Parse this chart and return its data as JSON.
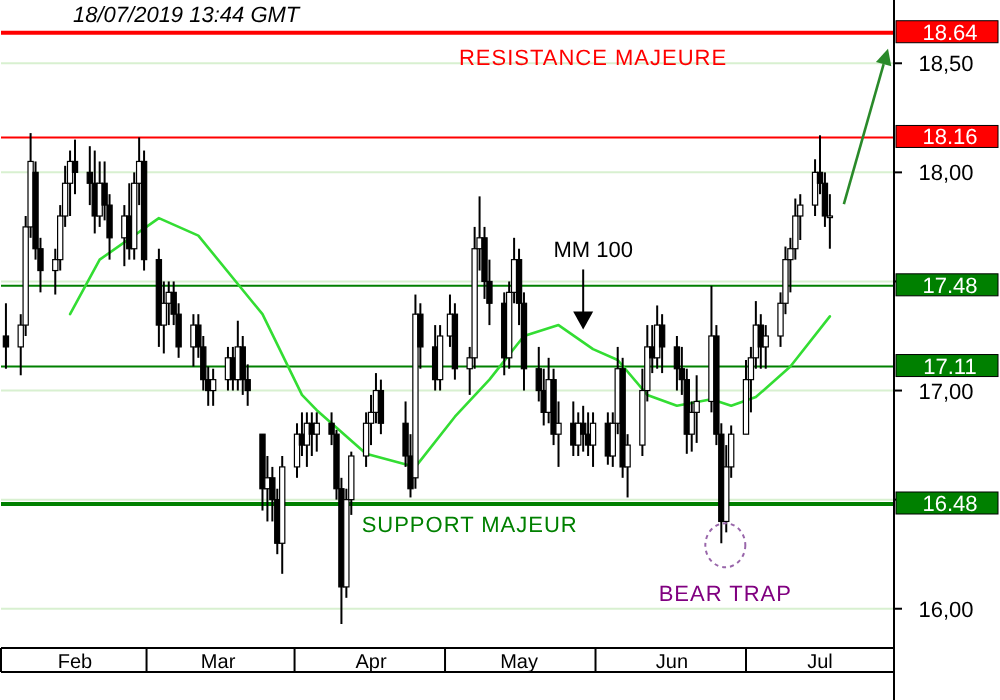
{
  "chart_data": {
    "type": "candlestick",
    "x": [
      "2019-02-01",
      "2019-02-04",
      "2019-02-05",
      "2019-02-06",
      "2019-02-07",
      "2019-02-08",
      "2019-02-11",
      "2019-02-12",
      "2019-02-13",
      "2019-02-14",
      "2019-02-15",
      "2019-02-18",
      "2019-02-19",
      "2019-02-20",
      "2019-02-21",
      "2019-02-22",
      "2019-02-25",
      "2019-02-26",
      "2019-02-27",
      "2019-02-28",
      "2019-03-01",
      "2019-03-04",
      "2019-03-05",
      "2019-03-06",
      "2019-03-07",
      "2019-03-08",
      "2019-03-11",
      "2019-03-12",
      "2019-03-13",
      "2019-03-14",
      "2019-03-15",
      "2019-03-18",
      "2019-03-19",
      "2019-03-20",
      "2019-03-21",
      "2019-03-22",
      "2019-03-25",
      "2019-03-26",
      "2019-03-27",
      "2019-03-28",
      "2019-03-29",
      "2019-04-01",
      "2019-04-02",
      "2019-04-03",
      "2019-04-04",
      "2019-04-05",
      "2019-04-08",
      "2019-04-09",
      "2019-04-10",
      "2019-04-11",
      "2019-04-12",
      "2019-04-15",
      "2019-04-16",
      "2019-04-17",
      "2019-04-18",
      "2019-04-23",
      "2019-04-24",
      "2019-04-25",
      "2019-04-26",
      "2019-04-29",
      "2019-04-30",
      "2019-05-02",
      "2019-05-03",
      "2019-05-06",
      "2019-05-07",
      "2019-05-08",
      "2019-05-09",
      "2019-05-10",
      "2019-05-13",
      "2019-05-14",
      "2019-05-15",
      "2019-05-16",
      "2019-05-17",
      "2019-05-20",
      "2019-05-21",
      "2019-05-22",
      "2019-05-23",
      "2019-05-24",
      "2019-05-27",
      "2019-05-28",
      "2019-05-29",
      "2019-05-30",
      "2019-05-31",
      "2019-06-03",
      "2019-06-04",
      "2019-06-05",
      "2019-06-06",
      "2019-06-07",
      "2019-06-10",
      "2019-06-11",
      "2019-06-12",
      "2019-06-13",
      "2019-06-14",
      "2019-06-17",
      "2019-06-18",
      "2019-06-19",
      "2019-06-20",
      "2019-06-21",
      "2019-06-24",
      "2019-06-25",
      "2019-06-26",
      "2019-06-27",
      "2019-06-28",
      "2019-07-01",
      "2019-07-02",
      "2019-07-03",
      "2019-07-04",
      "2019-07-05",
      "2019-07-08",
      "2019-07-09",
      "2019-07-10",
      "2019-07-11",
      "2019-07-12",
      "2019-07-15",
      "2019-07-16",
      "2019-07-17",
      "2019-07-18"
    ],
    "ohlc": [
      [
        17.25,
        17.4,
        17.1,
        17.2
      ],
      [
        17.2,
        17.35,
        17.07,
        17.3
      ],
      [
        17.3,
        17.8,
        17.25,
        17.75
      ],
      [
        17.75,
        18.18,
        17.7,
        18.05
      ],
      [
        18.0,
        18.05,
        17.6,
        17.65
      ],
      [
        17.65,
        17.7,
        17.45,
        17.55
      ],
      [
        17.55,
        17.65,
        17.44,
        17.6
      ],
      [
        17.6,
        17.85,
        17.55,
        17.8
      ],
      [
        17.8,
        18.03,
        17.75,
        17.95
      ],
      [
        17.95,
        18.1,
        17.8,
        18.05
      ],
      [
        18.05,
        18.15,
        17.9,
        18.0
      ],
      [
        18.0,
        18.12,
        17.85,
        17.95
      ],
      [
        17.95,
        18.1,
        17.72,
        17.8
      ],
      [
        17.8,
        18.05,
        17.75,
        17.95
      ],
      [
        17.95,
        18.05,
        17.78,
        17.85
      ],
      [
        17.85,
        17.9,
        17.6,
        17.7
      ],
      [
        17.7,
        17.85,
        17.57,
        17.8
      ],
      [
        17.8,
        17.95,
        17.6,
        17.65
      ],
      [
        17.65,
        18.0,
        17.6,
        17.95
      ],
      [
        17.95,
        18.16,
        17.85,
        18.05
      ],
      [
        18.05,
        18.1,
        17.55,
        17.6
      ],
      [
        17.6,
        17.65,
        17.2,
        17.3
      ],
      [
        17.3,
        17.5,
        17.17,
        17.4
      ],
      [
        17.4,
        17.5,
        17.3,
        17.45
      ],
      [
        17.45,
        17.5,
        17.3,
        17.35
      ],
      [
        17.35,
        17.4,
        17.15,
        17.2
      ],
      [
        17.2,
        17.35,
        17.11,
        17.3
      ],
      [
        17.3,
        17.35,
        17.15,
        17.2
      ],
      [
        17.2,
        17.25,
        17.0,
        17.05
      ],
      [
        17.05,
        17.11,
        16.93,
        17.0
      ],
      [
        17.0,
        17.1,
        16.93,
        17.05
      ],
      [
        17.05,
        17.2,
        17.0,
        17.15
      ],
      [
        17.15,
        17.2,
        17.0,
        17.05
      ],
      [
        17.05,
        17.32,
        17.0,
        17.2
      ],
      [
        17.2,
        17.25,
        16.98,
        17.05
      ],
      [
        17.05,
        17.12,
        16.93,
        17.0
      ],
      [
        16.8,
        16.8,
        16.45,
        16.55
      ],
      [
        16.55,
        16.7,
        16.4,
        16.6
      ],
      [
        16.6,
        16.65,
        16.4,
        16.5
      ],
      [
        16.5,
        16.55,
        16.25,
        16.3
      ],
      [
        16.3,
        16.7,
        16.16,
        16.65
      ],
      [
        16.65,
        16.85,
        16.6,
        16.8
      ],
      [
        16.8,
        16.9,
        16.7,
        16.75
      ],
      [
        16.75,
        16.9,
        16.65,
        16.85
      ],
      [
        16.85,
        16.9,
        16.7,
        16.8
      ],
      [
        16.8,
        16.9,
        16.72,
        16.85
      ],
      [
        16.85,
        16.9,
        16.75,
        16.8
      ],
      [
        16.8,
        16.82,
        16.5,
        16.55
      ],
      [
        16.55,
        16.6,
        15.93,
        16.1
      ],
      [
        16.1,
        16.55,
        16.05,
        16.5
      ],
      [
        16.5,
        16.72,
        16.43,
        16.7
      ],
      [
        16.7,
        16.9,
        16.65,
        16.85
      ],
      [
        16.85,
        16.98,
        16.75,
        16.9
      ],
      [
        16.9,
        17.08,
        16.85,
        17.0
      ],
      [
        17.0,
        17.05,
        16.8,
        16.85
      ],
      [
        16.85,
        16.95,
        16.65,
        16.7
      ],
      [
        16.7,
        16.8,
        16.51,
        16.55
      ],
      [
        16.6,
        17.44,
        16.55,
        17.35
      ],
      [
        17.35,
        17.4,
        17.1,
        17.2
      ],
      [
        17.2,
        17.3,
        17.0,
        17.05
      ],
      [
        17.05,
        17.3,
        17.0,
        17.25
      ],
      [
        17.25,
        17.44,
        17.2,
        17.35
      ],
      [
        17.35,
        17.4,
        17.05,
        17.1
      ],
      [
        17.1,
        17.2,
        16.98,
        17.15
      ],
      [
        17.15,
        17.75,
        17.1,
        17.65
      ],
      [
        17.65,
        17.89,
        17.55,
        17.7
      ],
      [
        17.7,
        17.75,
        17.42,
        17.5
      ],
      [
        17.5,
        17.6,
        17.3,
        17.4
      ],
      [
        17.4,
        17.45,
        17.07,
        17.15
      ],
      [
        17.15,
        17.5,
        17.1,
        17.45
      ],
      [
        17.45,
        17.7,
        17.4,
        17.6
      ],
      [
        17.6,
        17.65,
        17.3,
        17.4
      ],
      [
        17.4,
        17.45,
        17.0,
        17.1
      ],
      [
        17.1,
        17.2,
        16.95,
        17.0
      ],
      [
        17.0,
        17.1,
        16.84,
        16.9
      ],
      [
        16.9,
        17.15,
        16.85,
        17.05
      ],
      [
        17.05,
        17.1,
        16.75,
        16.8
      ],
      [
        16.8,
        16.95,
        16.65,
        16.85
      ],
      [
        16.85,
        16.95,
        16.7,
        16.75
      ],
      [
        16.75,
        16.9,
        16.7,
        16.85
      ],
      [
        16.85,
        16.93,
        16.72,
        16.8
      ],
      [
        16.8,
        16.9,
        16.7,
        16.75
      ],
      [
        16.75,
        16.9,
        16.65,
        16.85
      ],
      [
        16.85,
        16.9,
        16.66,
        16.7
      ],
      [
        16.7,
        16.9,
        16.65,
        16.85
      ],
      [
        16.85,
        17.2,
        16.8,
        17.1
      ],
      [
        17.1,
        17.15,
        16.6,
        16.65
      ],
      [
        16.65,
        16.8,
        16.51,
        16.75
      ],
      [
        16.75,
        17.1,
        16.7,
        17.0
      ],
      [
        17.0,
        17.3,
        16.95,
        17.2
      ],
      [
        17.2,
        17.3,
        17.08,
        17.15
      ],
      [
        17.15,
        17.39,
        17.1,
        17.3
      ],
      [
        17.3,
        17.35,
        17.08,
        17.2
      ],
      [
        17.2,
        17.25,
        17.0,
        17.1
      ],
      [
        17.1,
        17.2,
        16.98,
        17.05
      ],
      [
        17.05,
        17.1,
        16.71,
        16.8
      ],
      [
        16.8,
        16.95,
        16.72,
        16.9
      ],
      [
        16.9,
        17.07,
        16.76,
        16.95
      ],
      [
        16.95,
        17.48,
        16.9,
        17.25
      ],
      [
        17.25,
        17.3,
        16.75,
        16.8
      ],
      [
        16.8,
        16.85,
        16.3,
        16.4
      ],
      [
        16.4,
        16.75,
        16.35,
        16.65
      ],
      [
        16.65,
        16.84,
        16.6,
        16.8
      ],
      [
        16.8,
        17.14,
        16.8,
        17.05
      ],
      [
        17.05,
        17.2,
        16.9,
        17.15
      ],
      [
        17.15,
        17.41,
        17.1,
        17.3
      ],
      [
        17.3,
        17.35,
        17.1,
        17.2
      ],
      [
        17.2,
        17.3,
        17.1,
        17.25
      ],
      [
        17.25,
        17.45,
        17.2,
        17.4
      ],
      [
        17.4,
        17.66,
        17.35,
        17.6
      ],
      [
        17.6,
        17.7,
        17.45,
        17.65
      ],
      [
        17.65,
        17.88,
        17.6,
        17.8
      ],
      [
        17.8,
        17.9,
        17.69,
        17.85
      ],
      [
        17.85,
        18.06,
        17.8,
        18.0
      ],
      [
        18.0,
        18.17,
        17.9,
        17.95
      ],
      [
        17.95,
        18.0,
        17.75,
        17.8
      ],
      [
        17.8,
        17.9,
        17.65,
        17.8
      ]
    ],
    "color": "#000000",
    "series": [
      {
        "type": "line",
        "color": "#33dd33",
        "x": [
          "2019-02-14",
          "2019-02-20",
          "2019-03-04",
          "2019-03-12",
          "2019-03-25",
          "2019-04-02",
          "2019-04-05",
          "2019-04-15",
          "2019-04-25",
          "2019-05-03",
          "2019-05-10",
          "2019-05-17",
          "2019-05-24",
          "2019-05-31",
          "2019-06-05",
          "2019-06-11",
          "2019-06-17",
          "2019-06-24",
          "2019-06-28",
          "2019-07-03",
          "2019-07-10",
          "2019-07-18"
        ],
        "values": [
          17.35,
          17.6,
          17.79,
          17.71,
          17.35,
          16.98,
          16.91,
          16.71,
          16.65,
          16.88,
          17.05,
          17.25,
          17.3,
          17.19,
          17.14,
          16.98,
          16.93,
          16.96,
          16.93,
          16.97,
          17.11,
          17.34
        ]
      }
    ],
    "xlim": [
      "2019-01-31",
      "2019-07-31"
    ],
    "xticks": [
      {
        "value": "2019-02-15",
        "label": "Feb"
      },
      {
        "value": "2019-03-16",
        "label": "Mar"
      },
      {
        "value": "2019-04-16",
        "label": "Apr"
      },
      {
        "value": "2019-05-16",
        "label": "May"
      },
      {
        "value": "2019-06-16",
        "label": "Jun"
      },
      {
        "value": "2019-07-16",
        "label": "Jul"
      }
    ],
    "ylim": [
      15.82,
      18.79
    ],
    "yticks": [
      {
        "value": 16,
        "label": "16,00"
      },
      {
        "value": 16.5,
        "label": null
      },
      {
        "value": 17,
        "label": "17,00"
      },
      {
        "value": 17.5,
        "label": null
      },
      {
        "value": 18,
        "label": "18,00"
      },
      {
        "value": 18.5,
        "label": "18,50"
      }
    ],
    "grid": "y",
    "ref_lines": [
      {
        "axis": "y",
        "value": 18.64,
        "label": "18.64",
        "color": "#ff0000"
      },
      {
        "axis": "y",
        "value": 18.16,
        "label": "18.16",
        "color": "#ff0000"
      },
      {
        "axis": "y",
        "value": 17.48,
        "label": "17.48",
        "color": "#008000"
      },
      {
        "axis": "y",
        "value": 17.11,
        "label": "17.11",
        "color": "#008000"
      },
      {
        "axis": "y",
        "value": 16.48,
        "label": "16.48",
        "color": "#008000"
      }
    ],
    "annotations": [
      "18/07/2019  13:44 GMT",
      {
        "text": "RESISTANCE MAJEURE",
        "x": "2019-05-31",
        "y": 18.64
      },
      {
        "text": "SUPPORT MAJEUR",
        "x": "2019-05-06",
        "y": 16.48
      },
      {
        "text": "MM 100",
        "x": "2019-05-29",
        "y": 17.28
      },
      {
        "text": "BEAR TRAP",
        "x": "2019-06-26",
        "y": 16.3
      }
    ]
  }
}
